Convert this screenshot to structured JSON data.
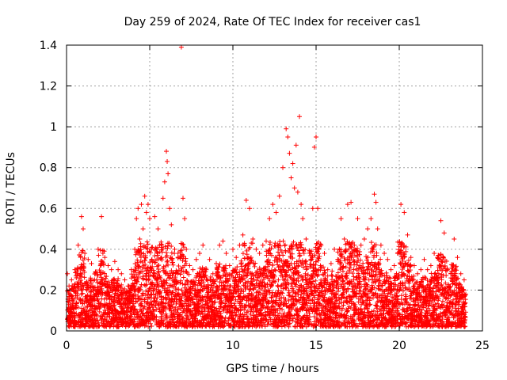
{
  "chart_data": {
    "type": "scatter",
    "title": "Day 259 of 2024, Rate Of TEC Index for receiver cas1",
    "xlabel": "GPS time / hours",
    "ylabel": "ROTI / TECUs",
    "xlim": [
      0,
      25
    ],
    "ylim": [
      0,
      1.4
    ],
    "x_ticks": [
      0,
      5,
      10,
      15,
      20,
      25
    ],
    "x_tick_labels": [
      "0",
      "5",
      "10",
      "15",
      "20",
      "25"
    ],
    "y_ticks": [
      0,
      0.2,
      0.4,
      0.6,
      0.8,
      1,
      1.2,
      1.4
    ],
    "y_tick_labels": [
      "0",
      "0.2",
      "0.4",
      "0.6",
      "0.8",
      "1",
      "1.2",
      "1.4"
    ],
    "grid": true,
    "marker": "+",
    "marker_color": "#ff0000",
    "series": [
      {
        "name": "ROTI",
        "x": [
          0.05,
          0.15,
          0.3,
          0.5,
          0.7,
          0.9,
          1.0,
          1.1,
          1.3,
          1.5,
          1.7,
          1.9,
          2.1,
          2.3,
          2.5,
          2.7,
          2.9,
          3.1,
          3.3,
          3.5,
          3.7,
          3.9,
          4.1,
          4.2,
          4.3,
          4.4,
          4.5,
          4.6,
          4.7,
          4.8,
          4.9,
          5.0,
          5.1,
          5.3,
          5.5,
          5.6,
          5.8,
          5.9,
          6.0,
          6.05,
          6.1,
          6.2,
          6.3,
          6.5,
          6.7,
          6.9,
          7.0,
          7.1,
          7.2,
          7.4,
          7.6,
          7.8,
          8.0,
          8.2,
          8.4,
          8.6,
          8.8,
          9.0,
          9.2,
          9.4,
          9.6,
          9.8,
          10.0,
          10.2,
          10.4,
          10.6,
          10.8,
          11.0,
          11.2,
          11.4,
          11.6,
          11.8,
          12.0,
          12.2,
          12.4,
          12.6,
          12.8,
          13.0,
          13.2,
          13.3,
          13.4,
          13.5,
          13.6,
          13.7,
          13.8,
          13.9,
          14.0,
          14.1,
          14.2,
          14.4,
          14.6,
          14.8,
          14.9,
          15.0,
          15.1,
          15.3,
          15.5,
          15.7,
          15.9,
          16.1,
          16.3,
          16.5,
          16.7,
          16.9,
          17.1,
          17.3,
          17.5,
          17.7,
          17.9,
          18.1,
          18.3,
          18.5,
          18.6,
          18.7,
          18.9,
          19.1,
          19.3,
          19.5,
          19.7,
          19.9,
          20.1,
          20.3,
          20.5,
          20.7,
          20.9,
          21.1,
          21.3,
          21.5,
          21.7,
          21.9,
          22.1,
          22.3,
          22.5,
          22.7,
          22.9,
          23.1,
          23.3,
          23.5,
          23.7,
          23.9,
          24.0
        ],
        "y": [
          0.28,
          0.22,
          0.25,
          0.3,
          0.42,
          0.56,
          0.5,
          0.38,
          0.35,
          0.33,
          0.28,
          0.4,
          0.56,
          0.36,
          0.32,
          0.3,
          0.34,
          0.3,
          0.28,
          0.25,
          0.22,
          0.3,
          0.4,
          0.55,
          0.6,
          0.45,
          0.62,
          0.5,
          0.66,
          0.58,
          0.62,
          0.55,
          0.4,
          0.56,
          0.5,
          0.42,
          0.65,
          0.73,
          0.88,
          0.83,
          0.77,
          0.6,
          0.52,
          0.4,
          0.38,
          1.39,
          0.65,
          0.55,
          0.4,
          0.32,
          0.3,
          0.35,
          0.38,
          0.42,
          0.3,
          0.35,
          0.28,
          0.33,
          0.42,
          0.44,
          0.38,
          0.32,
          0.4,
          0.36,
          0.42,
          0.47,
          0.64,
          0.6,
          0.45,
          0.4,
          0.38,
          0.42,
          0.44,
          0.55,
          0.62,
          0.58,
          0.66,
          0.8,
          0.99,
          0.95,
          0.87,
          0.75,
          0.82,
          0.7,
          0.91,
          0.68,
          1.05,
          0.62,
          0.55,
          0.45,
          0.38,
          0.6,
          0.9,
          0.95,
          0.6,
          0.42,
          0.38,
          0.3,
          0.33,
          0.4,
          0.35,
          0.55,
          0.45,
          0.62,
          0.63,
          0.42,
          0.55,
          0.42,
          0.45,
          0.5,
          0.55,
          0.67,
          0.63,
          0.5,
          0.42,
          0.38,
          0.35,
          0.3,
          0.32,
          0.38,
          0.62,
          0.58,
          0.47,
          0.36,
          0.32,
          0.28,
          0.3,
          0.35,
          0.3,
          0.32,
          0.38,
          0.36,
          0.54,
          0.48,
          0.3,
          0.28,
          0.45,
          0.36,
          0.28,
          0.25,
          0.18
        ]
      }
    ]
  }
}
